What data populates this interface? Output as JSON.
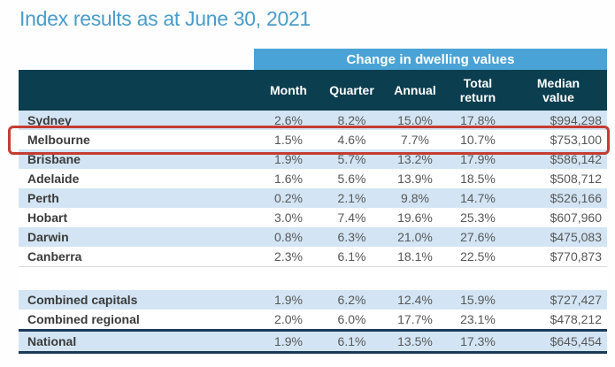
{
  "page": {
    "title": "Index results as at June 30, 2021"
  },
  "table": {
    "banner": "Change in dwelling values",
    "columns": [
      "Month",
      "Quarter",
      "Annual",
      "Total return",
      "Median value"
    ],
    "rows": [
      {
        "label": "Sydney",
        "month": "2.6%",
        "quarter": "8.2%",
        "annual": "15.0%",
        "total_return": "17.8%",
        "median_value": "$994,298"
      },
      {
        "label": "Melbourne",
        "month": "1.5%",
        "quarter": "4.6%",
        "annual": "7.7%",
        "total_return": "10.7%",
        "median_value": "$753,100",
        "highlighted": true
      },
      {
        "label": "Brisbane",
        "month": "1.9%",
        "quarter": "5.7%",
        "annual": "13.2%",
        "total_return": "17.9%",
        "median_value": "$586,142"
      },
      {
        "label": "Adelaide",
        "month": "1.6%",
        "quarter": "5.6%",
        "annual": "13.9%",
        "total_return": "18.5%",
        "median_value": "$508,712"
      },
      {
        "label": "Perth",
        "month": "0.2%",
        "quarter": "2.1%",
        "annual": "9.8%",
        "total_return": "14.7%",
        "median_value": "$526,166"
      },
      {
        "label": "Hobart",
        "month": "3.0%",
        "quarter": "7.4%",
        "annual": "19.6%",
        "total_return": "25.3%",
        "median_value": "$607,960"
      },
      {
        "label": "Darwin",
        "month": "0.8%",
        "quarter": "6.3%",
        "annual": "21.0%",
        "total_return": "27.6%",
        "median_value": "$475,083"
      },
      {
        "label": "Canberra",
        "month": "2.3%",
        "quarter": "6.1%",
        "annual": "18.1%",
        "total_return": "22.5%",
        "median_value": "$770,873"
      }
    ],
    "summary_rows": [
      {
        "label": "Combined capitals",
        "month": "1.9%",
        "quarter": "6.2%",
        "annual": "12.4%",
        "total_return": "15.9%",
        "median_value": "$727,427"
      },
      {
        "label": "Combined regional",
        "month": "2.0%",
        "quarter": "6.0%",
        "annual": "17.7%",
        "total_return": "23.1%",
        "median_value": "$478,212"
      },
      {
        "label": "National",
        "month": "1.9%",
        "quarter": "6.1%",
        "annual": "13.5%",
        "total_return": "17.3%",
        "median_value": "$645,454"
      }
    ]
  },
  "colors": {
    "title_text": "#4a9cc9",
    "banner_bg": "#4aa3d6",
    "header_bg": "#0b3e4f",
    "alt_row_bg": "#d3e5f4",
    "highlight_border": "#c63c32",
    "summary_rule": "#1b3a5c"
  }
}
